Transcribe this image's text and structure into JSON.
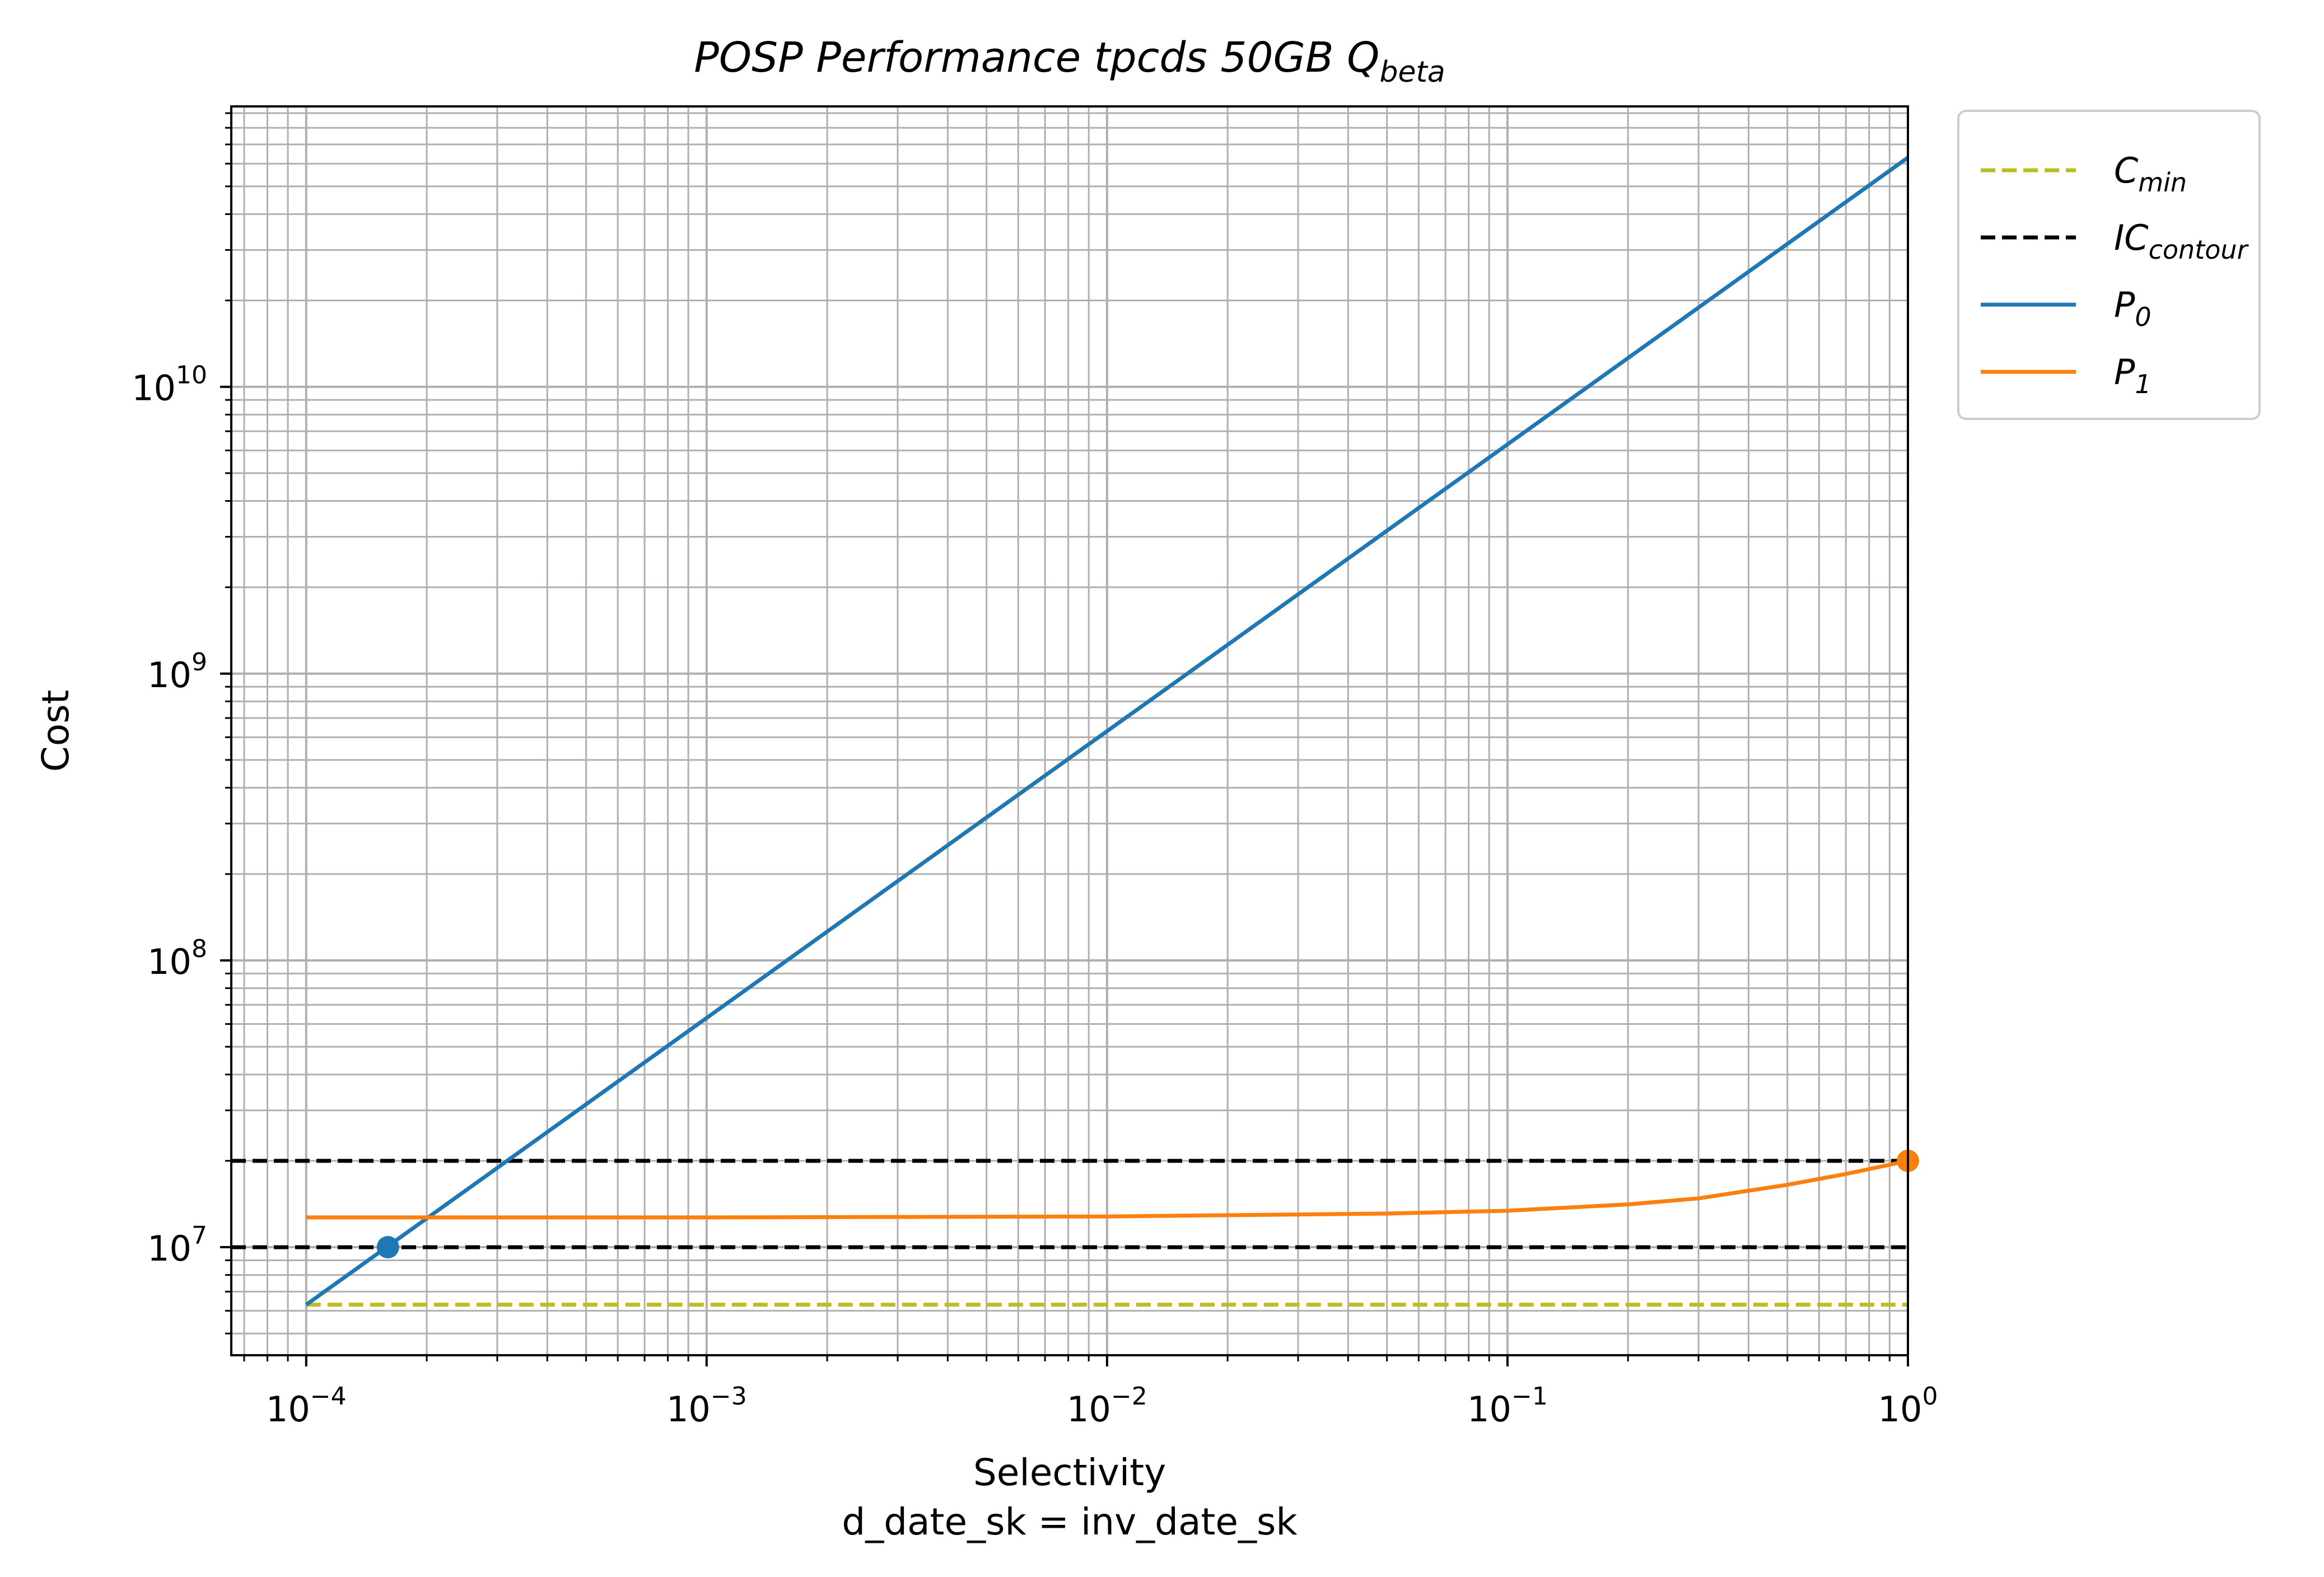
{
  "chart_data": {
    "type": "line",
    "title": "POSP Performance tpcds 50GB Q",
    "title_subscript": "beta",
    "xlabel": "Selectivity",
    "xlabel_line2": "d_date_sk = inv_date_sk",
    "ylabel": "Cost",
    "xscale": "log",
    "yscale": "log",
    "xlim": [
      6.5e-05,
      1.0
    ],
    "ylim": [
      4200000,
      95000000000
    ],
    "grid": true,
    "legend_position": "outside-top-right",
    "x_tick_labels": [
      {
        "value": 0.0001,
        "base": "10",
        "exp": "−4"
      },
      {
        "value": 0.001,
        "base": "10",
        "exp": "−3"
      },
      {
        "value": 0.01,
        "base": "10",
        "exp": "−2"
      },
      {
        "value": 0.1,
        "base": "10",
        "exp": "−1"
      },
      {
        "value": 1,
        "base": "10",
        "exp": "0"
      }
    ],
    "y_tick_labels": [
      {
        "value": 10000000,
        "base": "10",
        "exp": "7"
      },
      {
        "value": 100000000,
        "base": "10",
        "exp": "8"
      },
      {
        "value": 1000000000,
        "base": "10",
        "exp": "9"
      },
      {
        "value": 10000000000,
        "base": "10",
        "exp": "10"
      }
    ],
    "series": [
      {
        "name": "C",
        "name_subscript": "min",
        "style": "dashed",
        "color": "#bcbd22",
        "x": [
          0.0001,
          1.0
        ],
        "y": [
          6300000,
          6300000
        ]
      },
      {
        "name": "IC",
        "name_subscript": "contour",
        "style": "dashed",
        "color": "#000000",
        "lines": [
          {
            "x": [
              6.5e-05,
              1.0
            ],
            "y": [
              10000000,
              10000000
            ]
          },
          {
            "x": [
              6.5e-05,
              1.0
            ],
            "y": [
              20000000,
              20000000
            ]
          }
        ]
      },
      {
        "name": "P",
        "name_subscript": "0",
        "style": "solid",
        "color": "#1f77b4",
        "x": [
          0.0001,
          1.0
        ],
        "y": [
          6300000,
          63000000000
        ]
      },
      {
        "name": "P",
        "name_subscript": "1",
        "style": "solid",
        "color": "#ff7f0e",
        "x": [
          0.0001,
          0.001,
          0.01,
          0.05,
          0.1,
          0.2,
          0.3,
          0.5,
          0.7,
          1.0
        ],
        "y": [
          12700000,
          12700000,
          12800000,
          13100000,
          13400000,
          14100000,
          14800000,
          16500000,
          18000000,
          20000000
        ]
      }
    ],
    "markers": [
      {
        "series": 2,
        "x": 0.00016,
        "y": 10000000,
        "color": "#1f77b4"
      },
      {
        "series": 3,
        "x": 1.0,
        "y": 20000000,
        "color": "#ff7f0e"
      }
    ]
  }
}
